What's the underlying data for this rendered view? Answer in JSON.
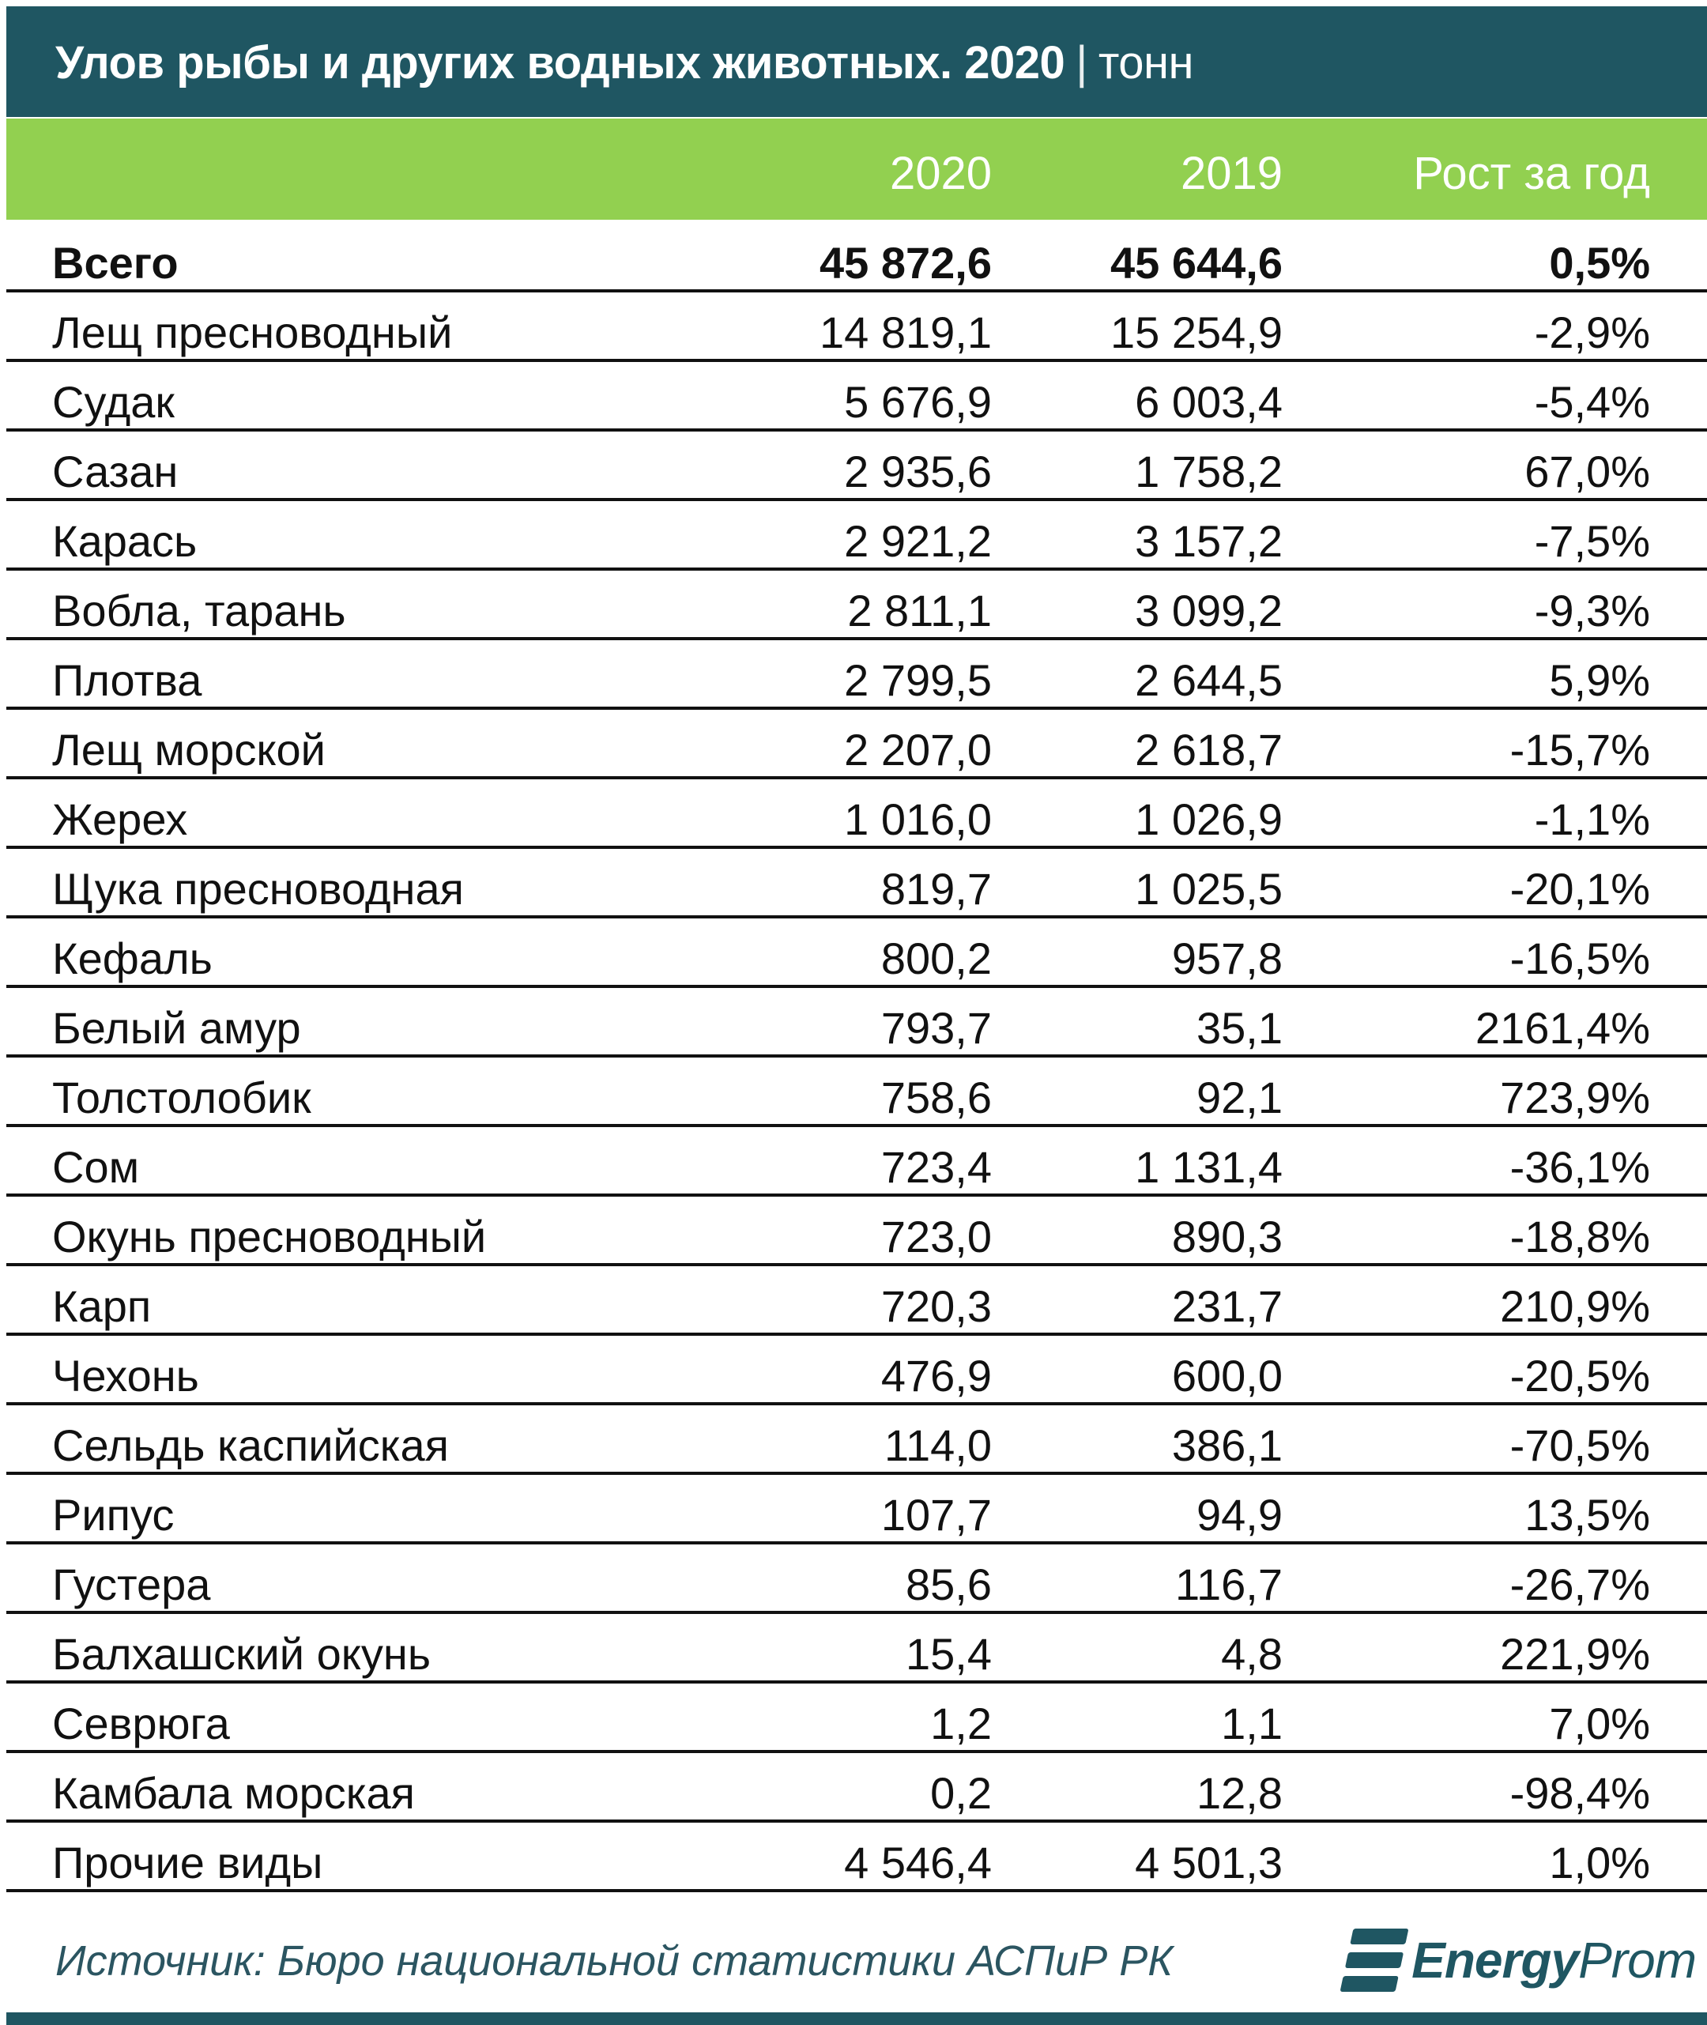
{
  "title": {
    "main": "Улов рыбы и других водных животных. 2020",
    "separator": "|",
    "unit": "тонн"
  },
  "header": {
    "col_2020": "2020",
    "col_2019": "2019",
    "col_growth": "Рост за год"
  },
  "rows": [
    {
      "name": "Всего",
      "v2020": "45 872,6",
      "v2019": "45 644,6",
      "growth": "0,5%"
    },
    {
      "name": "Лещ пресноводный",
      "v2020": "14 819,1",
      "v2019": "15 254,9",
      "growth": "-2,9%"
    },
    {
      "name": "Судак",
      "v2020": "5 676,9",
      "v2019": "6 003,4",
      "growth": "-5,4%"
    },
    {
      "name": "Сазан",
      "v2020": "2 935,6",
      "v2019": "1 758,2",
      "growth": "67,0%"
    },
    {
      "name": "Карась",
      "v2020": "2 921,2",
      "v2019": "3 157,2",
      "growth": "-7,5%"
    },
    {
      "name": "Вобла, тарань",
      "v2020": "2 811,1",
      "v2019": "3 099,2",
      "growth": "-9,3%"
    },
    {
      "name": "Плотва",
      "v2020": "2 799,5",
      "v2019": "2 644,5",
      "growth": "5,9%"
    },
    {
      "name": "Лещ морской",
      "v2020": "2 207,0",
      "v2019": "2 618,7",
      "growth": "-15,7%"
    },
    {
      "name": "Жерех",
      "v2020": "1 016,0",
      "v2019": "1 026,9",
      "growth": "-1,1%"
    },
    {
      "name": "Щука пресноводная",
      "v2020": "819,7",
      "v2019": "1 025,5",
      "growth": "-20,1%"
    },
    {
      "name": "Кефаль",
      "v2020": "800,2",
      "v2019": "957,8",
      "growth": "-16,5%"
    },
    {
      "name": "Белый амур",
      "v2020": "793,7",
      "v2019": "35,1",
      "growth": "2161,4%"
    },
    {
      "name": "Толстолобик",
      "v2020": "758,6",
      "v2019": "92,1",
      "growth": "723,9%"
    },
    {
      "name": "Сом",
      "v2020": "723,4",
      "v2019": "1 131,4",
      "growth": "-36,1%"
    },
    {
      "name": "Окунь пресноводный",
      "v2020": "723,0",
      "v2019": "890,3",
      "growth": "-18,8%"
    },
    {
      "name": "Карп",
      "v2020": "720,3",
      "v2019": "231,7",
      "growth": "210,9%"
    },
    {
      "name": "Чехонь",
      "v2020": "476,9",
      "v2019": "600,0",
      "growth": "-20,5%"
    },
    {
      "name": "Сельдь каспийская",
      "v2020": "114,0",
      "v2019": "386,1",
      "growth": "-70,5%"
    },
    {
      "name": "Рипус",
      "v2020": "107,7",
      "v2019": "94,9",
      "growth": "13,5%"
    },
    {
      "name": "Густера",
      "v2020": "85,6",
      "v2019": "116,7",
      "growth": "-26,7%"
    },
    {
      "name": "Балхашский окунь",
      "v2020": "15,4",
      "v2019": "4,8",
      "growth": "221,9%"
    },
    {
      "name": "Севрюга",
      "v2020": "1,2",
      "v2019": "1,1",
      "growth": "7,0%"
    },
    {
      "name": "Камбала морская",
      "v2020": "0,2",
      "v2019": "12,8",
      "growth": "-98,4%"
    },
    {
      "name": "Прочие виды",
      "v2020": "4 546,4",
      "v2019": "4 501,3",
      "growth": "1,0%"
    }
  ],
  "footer": {
    "source": "Источник: Бюро национальной статистики АСПиР РК",
    "logo_bold": "Energy",
    "logo_light": "Prom",
    "logo_icon": "energyprom-logo-icon"
  },
  "colors": {
    "title_band": "#1f5662",
    "header_band": "#92d050",
    "row_border": "#111111",
    "source_text": "#2b5561"
  }
}
